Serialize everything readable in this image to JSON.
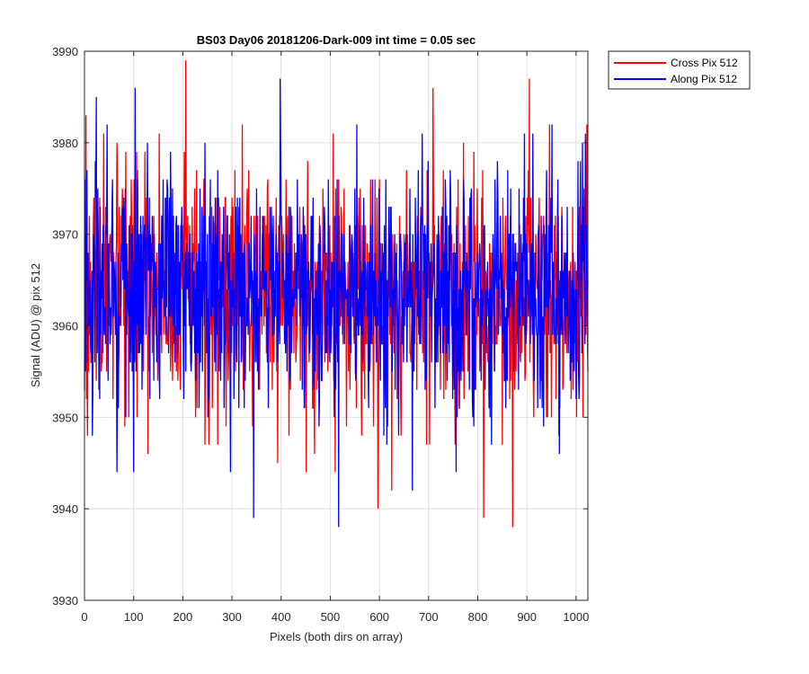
{
  "chart_data": {
    "type": "line",
    "title": "BS03 Day06 20181206-Dark-009 int time = 0.05 sec",
    "xlabel": "Pixels (both dirs on array)",
    "ylabel": "Signal (ADU) @ pix 512",
    "xlim": [
      0,
      1024
    ],
    "ylim": [
      3930,
      3990
    ],
    "xticks": [
      0,
      100,
      200,
      300,
      400,
      500,
      600,
      700,
      800,
      900,
      1000
    ],
    "yticks": [
      3930,
      3940,
      3950,
      3960,
      3970,
      3980,
      3990
    ],
    "grid": true,
    "legend_position": "outside top-right",
    "series": [
      {
        "name": "Cross Pix 512",
        "color": "#ff0000",
        "noise": {
          "mean": 3963.5,
          "std": 6.5,
          "seed": 17
        },
        "anchors": [
          [
            206,
            3989
          ],
          [
            709,
            3986
          ],
          [
            3,
            3983
          ],
          [
            905,
            3987
          ],
          [
            1022,
            3982
          ],
          [
            597,
            3940
          ],
          [
            812,
            3939
          ],
          [
            871,
            3938
          ],
          [
            625,
            3942
          ],
          [
            6,
            3948
          ]
        ]
      },
      {
        "name": "Along Pix 512",
        "color": "#0000ff",
        "noise": {
          "mean": 3963.5,
          "std": 6.5,
          "seed": 91
        },
        "anchors": [
          [
            398,
            3987
          ],
          [
            103,
            3986
          ],
          [
            24,
            3985
          ],
          [
            344,
            3939
          ],
          [
            517,
            3938
          ],
          [
            66,
            3944
          ],
          [
            667,
            3942
          ],
          [
            1019,
            3981
          ],
          [
            951,
            3982
          ]
        ]
      }
    ]
  }
}
